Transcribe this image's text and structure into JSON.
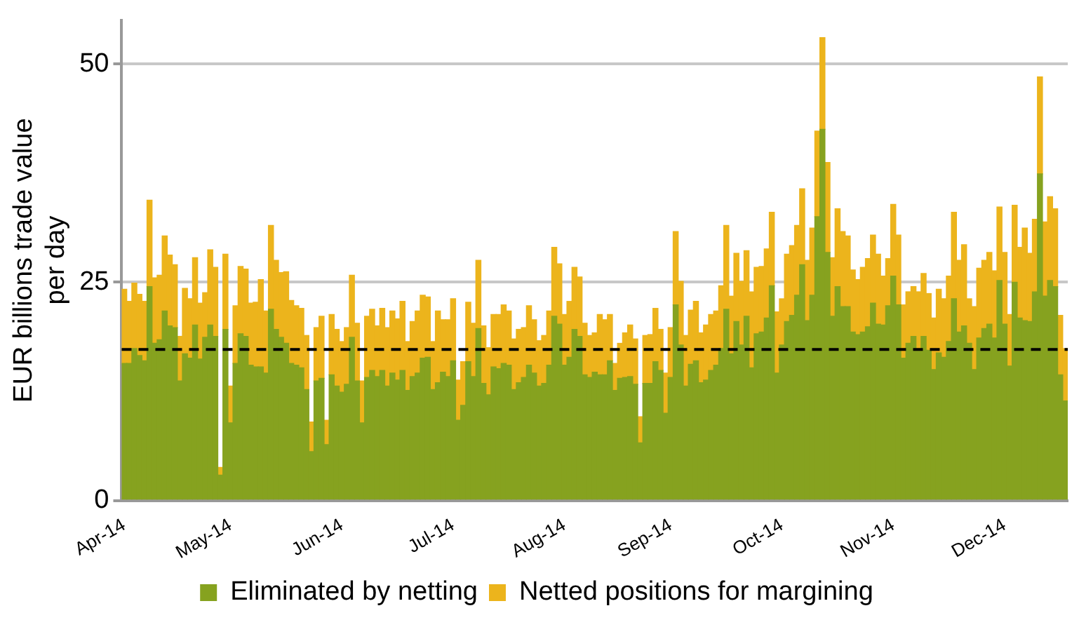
{
  "chart_data": {
    "type": "bar",
    "stacked": true,
    "ylabel": "EUR billions trade value per day",
    "categories": [
      "Apr-14",
      null,
      null,
      null,
      null,
      null,
      null,
      null,
      null,
      null,
      null,
      null,
      null,
      null,
      null,
      null,
      null,
      null,
      null,
      null,
      null,
      "May-14",
      null,
      null,
      null,
      null,
      null,
      null,
      null,
      null,
      null,
      null,
      null,
      null,
      null,
      null,
      null,
      null,
      null,
      null,
      null,
      null,
      null,
      "Jun-14",
      null,
      null,
      null,
      null,
      null,
      null,
      null,
      null,
      null,
      null,
      null,
      null,
      null,
      null,
      null,
      null,
      null,
      null,
      null,
      null,
      null,
      "Jul-14",
      null,
      null,
      null,
      null,
      null,
      null,
      null,
      null,
      null,
      null,
      null,
      null,
      null,
      null,
      null,
      null,
      null,
      null,
      null,
      null,
      null,
      "Aug-14",
      null,
      null,
      null,
      null,
      null,
      null,
      null,
      null,
      null,
      null,
      null,
      null,
      null,
      null,
      null,
      null,
      null,
      null,
      null,
      null,
      "Sep-14",
      null,
      null,
      null,
      null,
      null,
      null,
      null,
      null,
      null,
      null,
      null,
      null,
      null,
      null,
      null,
      null,
      null,
      null,
      null,
      null,
      null,
      "Oct-14",
      null,
      null,
      null,
      null,
      null,
      null,
      null,
      null,
      null,
      null,
      null,
      null,
      null,
      null,
      null,
      null,
      null,
      null,
      null,
      null,
      null,
      "Nov-14",
      null,
      null,
      null,
      null,
      null,
      null,
      null,
      null,
      null,
      null,
      null,
      null,
      null,
      null,
      null,
      null,
      null,
      null,
      null,
      null,
      null,
      "Dec-14",
      null,
      null,
      null,
      null,
      null,
      null,
      null,
      null,
      null,
      null,
      null,
      null
    ],
    "series": [
      {
        "name": "Eliminated by netting",
        "color": "#86a21f",
        "values": [
          15.7,
          15.7,
          17.4,
          16.6,
          16.0,
          24.5,
          18.0,
          18.4,
          21.7,
          20.0,
          19.8,
          13.7,
          16.8,
          16.3,
          20.1,
          16.2,
          18.7,
          20.1,
          18.8,
          2.9,
          19.6,
          8.9,
          15.7,
          19.1,
          18.8,
          15.5,
          15.3,
          15.3,
          14.6,
          21.9,
          19.6,
          18.7,
          18.0,
          15.7,
          15.5,
          15.2,
          12.7,
          5.6,
          13.7,
          14.0,
          6.4,
          14.4,
          13.1,
          12.4,
          13.3,
          18.7,
          13.7,
          8.9,
          14.1,
          14.9,
          14.2,
          14.9,
          13.1,
          14.6,
          13.8,
          14.9,
          12.6,
          14.2,
          14.6,
          16.3,
          16.4,
          12.7,
          13.5,
          14.7,
          14.2,
          16.0,
          9.2,
          10.9,
          15.9,
          14.2,
          19.7,
          13.4,
          12.1,
          15.3,
          15.1,
          15.7,
          15.5,
          12.7,
          13.5,
          14.1,
          15.5,
          14.6,
          13.1,
          13.4,
          15.5,
          21.1,
          20.2,
          15.5,
          16.4,
          19.6,
          18.8,
          14.4,
          14.1,
          14.7,
          14.4,
          14.4,
          16.0,
          12.6,
          14.0,
          14.1,
          14.2,
          13.3,
          6.6,
          13.4,
          13.4,
          15.9,
          14.9,
          10.0,
          14.1,
          22.4,
          17.8,
          13.1,
          15.6,
          16.0,
          13.5,
          13.8,
          14.9,
          15.5,
          17.4,
          21.9,
          16.8,
          20.5,
          17.8,
          21.1,
          15.2,
          19.1,
          19.3,
          20.9,
          24.6,
          14.6,
          17.8,
          20.5,
          21.2,
          23.5,
          27.0,
          20.6,
          23.5,
          32.5,
          42.5,
          28.4,
          21.1,
          24.5,
          22.2,
          22.2,
          19.3,
          19.0,
          19.3,
          19.9,
          22.6,
          20.2,
          20.1,
          22.3,
          25.7,
          22.4,
          16.3,
          18.0,
          18.8,
          17.3,
          18.8,
          17.2,
          15.0,
          16.9,
          16.4,
          18.2,
          23.1,
          19.3,
          20.0,
          18.0,
          15.0,
          18.6,
          19.7,
          20.2,
          18.6,
          25.2,
          20.2,
          15.4,
          25.0,
          20.9,
          20.6,
          20.5,
          23.9,
          37.4,
          23.4,
          25.2,
          24.5,
          14.4,
          11.4
        ]
      },
      {
        "name": "Netted positions for margining",
        "color": "#ecb41c",
        "values": [
          8.5,
          7.1,
          7.5,
          7.0,
          6.8,
          9.9,
          7.5,
          7.4,
          8.6,
          8.1,
          7.2,
          5.1,
          7.5,
          6.8,
          7.7,
          6.4,
          5.1,
          8.6,
          7.9,
          0.9,
          8.6,
          4.2,
          6.6,
          7.7,
          7.7,
          7.1,
          7.4,
          10.0,
          7.1,
          9.6,
          7.9,
          7.4,
          8.2,
          7.2,
          6.8,
          6.8,
          6.2,
          3.4,
          6.1,
          7.1,
          2.8,
          6.9,
          6.5,
          5.8,
          6.5,
          7.1,
          6.6,
          4.8,
          7.0,
          7.0,
          5.8,
          7.1,
          6.7,
          7.1,
          7.0,
          7.9,
          5.6,
          6.3,
          7.1,
          7.2,
          6.9,
          5.5,
          8.2,
          6.0,
          6.5,
          7.1,
          4.6,
          5.0,
          6.8,
          6.1,
          7.8,
          6.6,
          5.4,
          6.0,
          6.2,
          6.7,
          6.2,
          5.8,
          6.1,
          5.7,
          6.8,
          6.1,
          5.2,
          5.5,
          6.2,
          7.9,
          6.9,
          5.8,
          6.4,
          7.1,
          6.8,
          5.9,
          4.8,
          4.5,
          6.9,
          6.3,
          5.3,
          3.1,
          4.0,
          5.1,
          5.9,
          5.2,
          3.0,
          5.5,
          5.6,
          6.1,
          4.7,
          4.6,
          5.7,
          8.4,
          7.3,
          5.8,
          6.2,
          6.8,
          5.7,
          6.3,
          6.4,
          6.2,
          7.2,
          9.6,
          6.6,
          7.8,
          7.3,
          7.5,
          8.7,
          7.6,
          7.5,
          7.9,
          8.4,
          7.0,
          5.3,
          7.7,
          8.0,
          8.0,
          8.7,
          6.9,
          7.7,
          9.8,
          10.5,
          10.3,
          6.7,
          8.9,
          8.6,
          8.1,
          7.1,
          6.3,
          7.4,
          7.8,
          7.8,
          8.0,
          5.6,
          5.4,
          8.2,
          8.0,
          6.1,
          5.9,
          5.7,
          6.6,
          7.2,
          6.5,
          5.9,
          7.3,
          6.7,
          7.5,
          9.9,
          8.2,
          9.3,
          5.1,
          7.2,
          8.0,
          7.8,
          8.2,
          7.7,
          8.4,
          8.2,
          5.9,
          8.8,
          8.1,
          10.6,
          7.8,
          8.3,
          11.1,
          8.5,
          9.6,
          8.9,
          6.8,
          6.0
        ]
      }
    ],
    "ylim": [
      0,
      55
    ],
    "yticks": [
      0,
      25,
      50
    ],
    "grid": "y",
    "legend": "bottom",
    "ref_lines": [
      {
        "axis": "y",
        "value": 17.3,
        "color": "#000000",
        "line_style": "dashed"
      }
    ]
  }
}
